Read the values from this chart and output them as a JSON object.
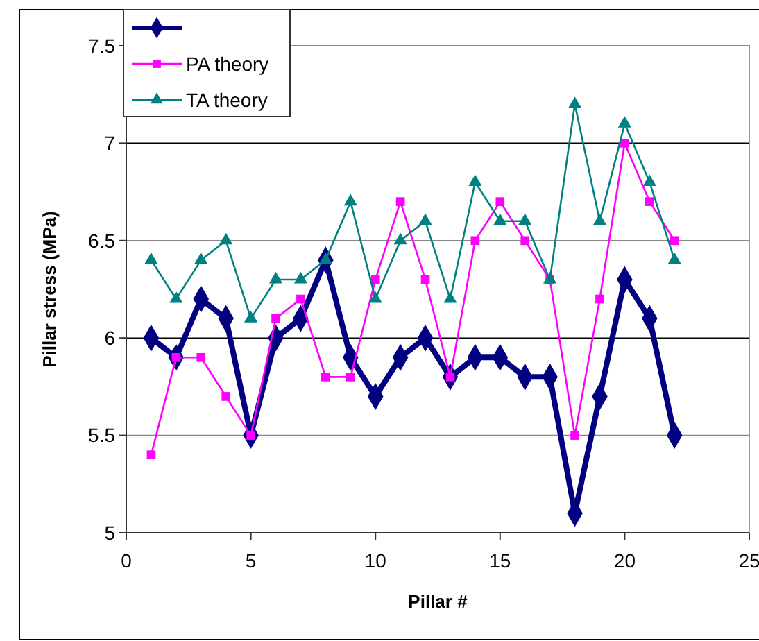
{
  "chart_data": {
    "type": "line",
    "xlabel": "Pillar #",
    "ylabel": "Pillar stress (MPa)",
    "x": [
      1,
      2,
      3,
      4,
      5,
      6,
      7,
      8,
      9,
      10,
      11,
      12,
      13,
      14,
      15,
      16,
      17,
      18,
      19,
      20,
      21,
      22
    ],
    "series": [
      {
        "color": "#000080",
        "marker": "diamond",
        "values": [
          6.0,
          5.9,
          6.2,
          6.1,
          5.5,
          6.0,
          6.1,
          6.4,
          5.9,
          5.7,
          5.9,
          6.0,
          5.8,
          5.9,
          5.9,
          5.8,
          5.8,
          5.1,
          5.7,
          6.3,
          6.1,
          5.5
        ]
      },
      {
        "name": "PA theory",
        "color": "#ff00ff",
        "marker": "square",
        "values": [
          5.4,
          5.9,
          5.9,
          5.7,
          5.5,
          6.1,
          6.2,
          5.8,
          5.8,
          6.3,
          6.7,
          6.3,
          5.8,
          6.5,
          6.7,
          6.5,
          6.3,
          5.5,
          6.2,
          7.0,
          6.7,
          6.5
        ]
      },
      {
        "name": "TA theory",
        "color": "#008080",
        "marker": "triangle",
        "values": [
          6.4,
          6.2,
          6.4,
          6.5,
          6.1,
          6.3,
          6.3,
          6.4,
          6.7,
          6.2,
          6.5,
          6.6,
          6.2,
          6.8,
          6.6,
          6.6,
          6.3,
          7.2,
          6.6,
          7.1,
          6.8,
          6.4
        ]
      }
    ],
    "xlim": [
      0,
      25
    ],
    "xticks": [
      0,
      5,
      10,
      15,
      20,
      25
    ],
    "ylim": [
      5,
      7.5
    ],
    "yticks": [
      5,
      5.5,
      6,
      6.5,
      7,
      7.5
    ],
    "grid": "y",
    "legend": "top left"
  }
}
